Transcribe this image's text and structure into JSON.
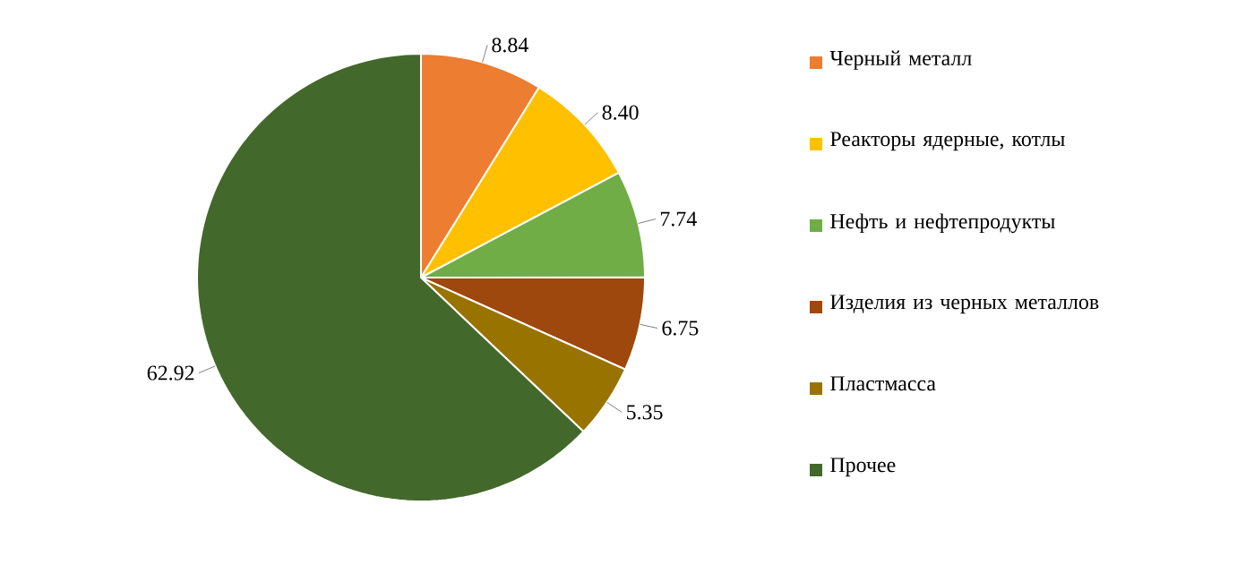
{
  "chart_data": {
    "type": "pie",
    "categories": [
      "Черный металл",
      "Реакторы ядерные, котлы",
      "Нефть и нефтепродукты",
      "Изделия из черных металлов",
      "Пластмасса",
      "Прочее"
    ],
    "values": [
      8.84,
      8.4,
      7.74,
      6.75,
      5.35,
      62.92
    ],
    "value_labels": [
      "8.84",
      "8.40",
      "7.74",
      "6.75",
      "5.35",
      "62.92"
    ],
    "colors": [
      "#ed7d31",
      "#ffc000",
      "#70ad47",
      "#9e480e",
      "#997300",
      "#43682b"
    ],
    "legend": "right"
  }
}
